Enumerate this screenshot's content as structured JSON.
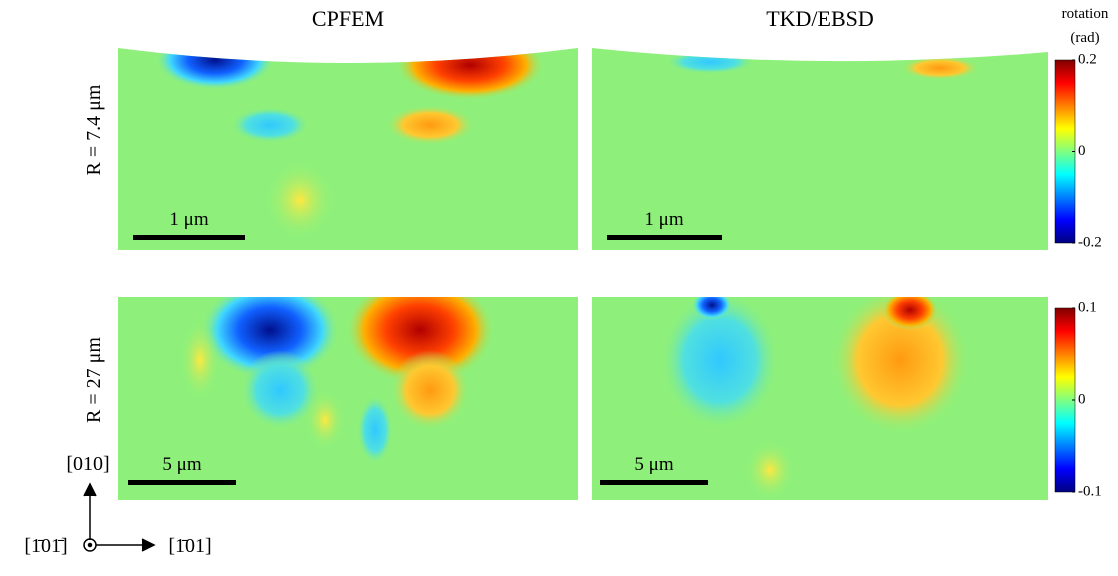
{
  "columns": [
    "CPFEM",
    "TKD/EBSD"
  ],
  "colorbar_title": [
    "rotation",
    "(rad)"
  ],
  "rows": [
    {
      "label": "R = 7.4 μm",
      "scale_bars": [
        "1 μm",
        "1 μm"
      ],
      "colorbar": {
        "lim": [
          -0.2,
          0.2
        ],
        "ticks": [
          -0.2,
          0,
          0.2
        ]
      }
    },
    {
      "label": "R = 27 μm",
      "scale_bars": [
        "5 μm",
        "5 μm"
      ],
      "colorbar": {
        "lim": [
          -0.1,
          0.1
        ],
        "ticks": [
          -0.1,
          0,
          0.1
        ]
      }
    }
  ],
  "axes": {
    "up": "[010]",
    "out": "[1̄01̄]",
    "right": "[1̄01]"
  }
}
